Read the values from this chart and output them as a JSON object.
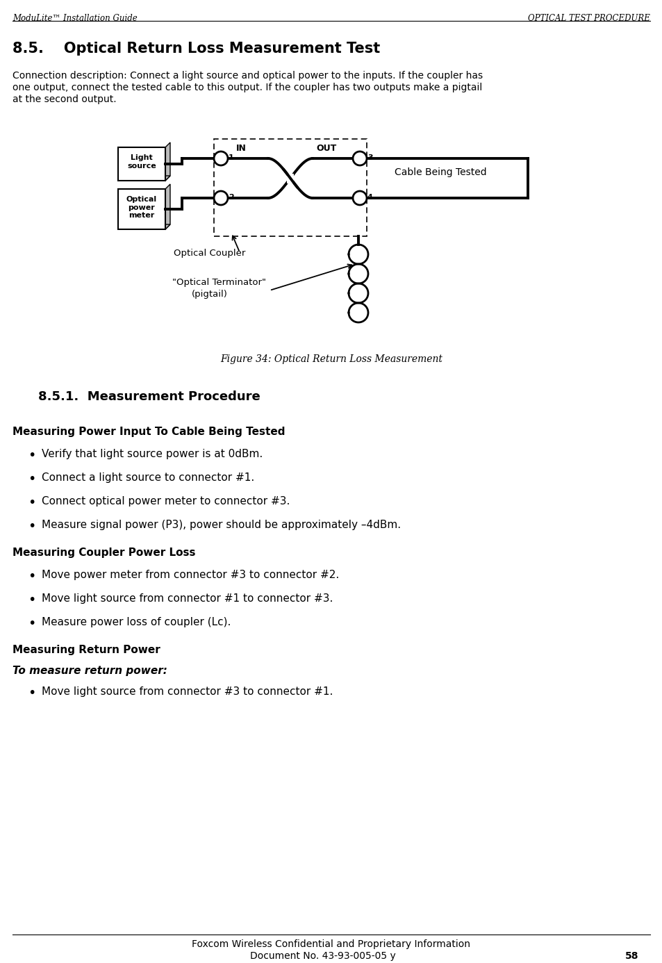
{
  "header_left": "ModuLite™ Installation Guide",
  "header_right": "OPTICAL TEST PROCEDURE",
  "section_title": "8.5.    Optical Return Loss Measurement Test",
  "line1": "Connection description: Connect a light source and optical power to the inputs. If the coupler has",
  "line2": "one output, connect the tested cable to this output. If the coupler has two outputs make a pigtail",
  "line3": "at the second output.",
  "figure_caption": "Figure 34: Optical Return Loss Measurement",
  "subsection_title": "8.5.1.  Measurement Procedure",
  "subheading1": "Measuring Power Input To Cable Being Tested",
  "bullets1": [
    "Verify that light source power is at 0dBm.",
    "Connect a light source to connector #1.",
    "Connect optical power meter to connector #3.",
    "Measure signal power (P3), power should be approximately –4dBm."
  ],
  "subheading2": "Measuring Coupler Power Loss",
  "bullets2": [
    "Move power meter from connector #3 to connector #2.",
    "Move light source from connector #1 to connector #3.",
    "Measure power loss of coupler (Lc)."
  ],
  "subheading3": "Measuring Return Power",
  "italic_intro": "To measure return power:",
  "bullets3": [
    "Move light source from connector #3 to connector #1."
  ],
  "footer_line1": "Foxcom Wireless Confidential and Proprietary Information",
  "footer_line2": "Document No. 43-93-005-05 y",
  "footer_page": "58",
  "bg_color": "#ffffff"
}
